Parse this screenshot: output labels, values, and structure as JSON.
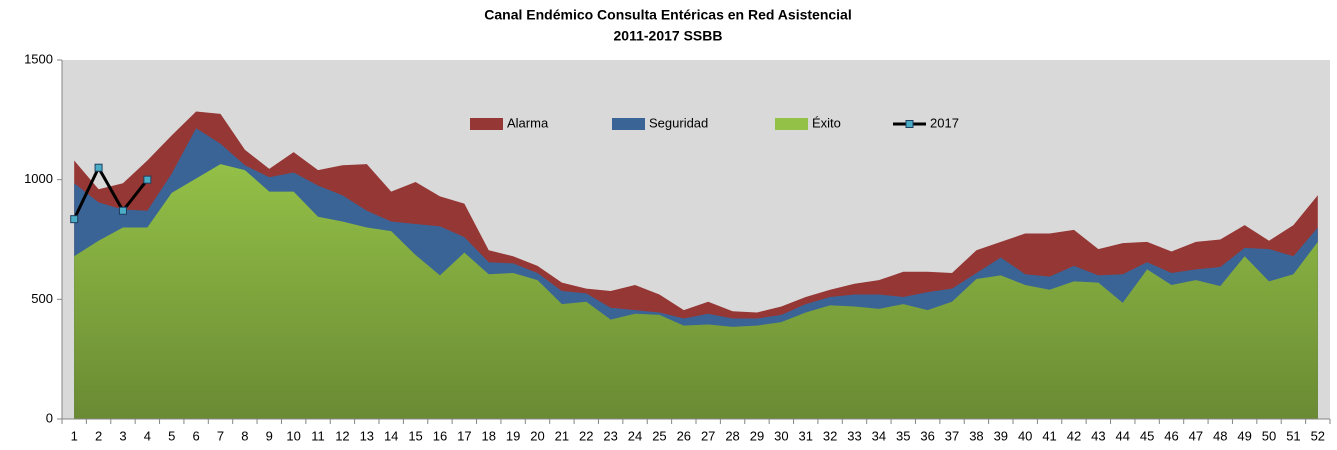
{
  "chart_data": {
    "type": "area",
    "title": "Canal Endémico Consulta Entéricas en Red Asistencial",
    "subtitle": "2011-2017 SSBB",
    "categories": [
      "1",
      "2",
      "3",
      "4",
      "5",
      "6",
      "7",
      "8",
      "9",
      "10",
      "11",
      "12",
      "13",
      "14",
      "15",
      "16",
      "17",
      "18",
      "19",
      "20",
      "21",
      "22",
      "23",
      "24",
      "25",
      "26",
      "27",
      "28",
      "29",
      "30",
      "31",
      "32",
      "33",
      "34",
      "35",
      "36",
      "37",
      "38",
      "39",
      "40",
      "41",
      "42",
      "43",
      "44",
      "45",
      "46",
      "47",
      "48",
      "49",
      "50",
      "51",
      "52"
    ],
    "series": [
      {
        "name": "Alarma",
        "color": "#953735",
        "values": [
          1080,
          960,
          985,
          1080,
          1185,
          1285,
          1275,
          1125,
          1045,
          1115,
          1040,
          1060,
          1065,
          950,
          990,
          930,
          900,
          705,
          680,
          640,
          570,
          545,
          535,
          560,
          520,
          455,
          490,
          450,
          445,
          470,
          510,
          540,
          565,
          580,
          615,
          615,
          610,
          705,
          740,
          775,
          775,
          790,
          710,
          735,
          740,
          700,
          740,
          750,
          810,
          745,
          810,
          935
        ]
      },
      {
        "name": "Seguridad",
        "color": "#3a6496",
        "values": [
          985,
          905,
          875,
          870,
          1025,
          1215,
          1150,
          1060,
          1010,
          1030,
          975,
          935,
          870,
          825,
          815,
          805,
          760,
          655,
          650,
          610,
          535,
          525,
          465,
          455,
          445,
          420,
          440,
          420,
          420,
          435,
          480,
          510,
          520,
          520,
          510,
          530,
          545,
          610,
          675,
          605,
          595,
          640,
          600,
          605,
          655,
          610,
          625,
          635,
          715,
          710,
          680,
          800
        ]
      },
      {
        "name": "Éxito",
        "color": "#93c047",
        "values": [
          680,
          745,
          800,
          800,
          945,
          1005,
          1065,
          1040,
          950,
          950,
          845,
          825,
          800,
          785,
          685,
          600,
          695,
          605,
          610,
          580,
          480,
          490,
          415,
          440,
          435,
          390,
          395,
          385,
          390,
          405,
          445,
          475,
          470,
          460,
          480,
          455,
          490,
          585,
          600,
          560,
          540,
          575,
          570,
          485,
          625,
          560,
          580,
          555,
          680,
          575,
          605,
          740
        ]
      },
      {
        "name": "2017",
        "type": "line",
        "color": "#000000",
        "marker_color": "#4bacc6",
        "values": [
          835,
          1050,
          870,
          1000,
          null,
          null,
          null,
          null,
          null,
          null,
          null,
          null,
          null,
          null,
          null,
          null,
          null,
          null,
          null,
          null,
          null,
          null,
          null,
          null,
          null,
          null,
          null,
          null,
          null,
          null,
          null,
          null,
          null,
          null,
          null,
          null,
          null,
          null,
          null,
          null,
          null,
          null,
          null,
          null,
          null,
          null,
          null,
          null,
          null,
          null,
          null,
          null
        ]
      }
    ],
    "ylim": [
      0,
      1500
    ],
    "yticks": [
      0,
      500,
      1000,
      1500
    ],
    "grid": false,
    "plot_background": "#d9d9d9"
  }
}
